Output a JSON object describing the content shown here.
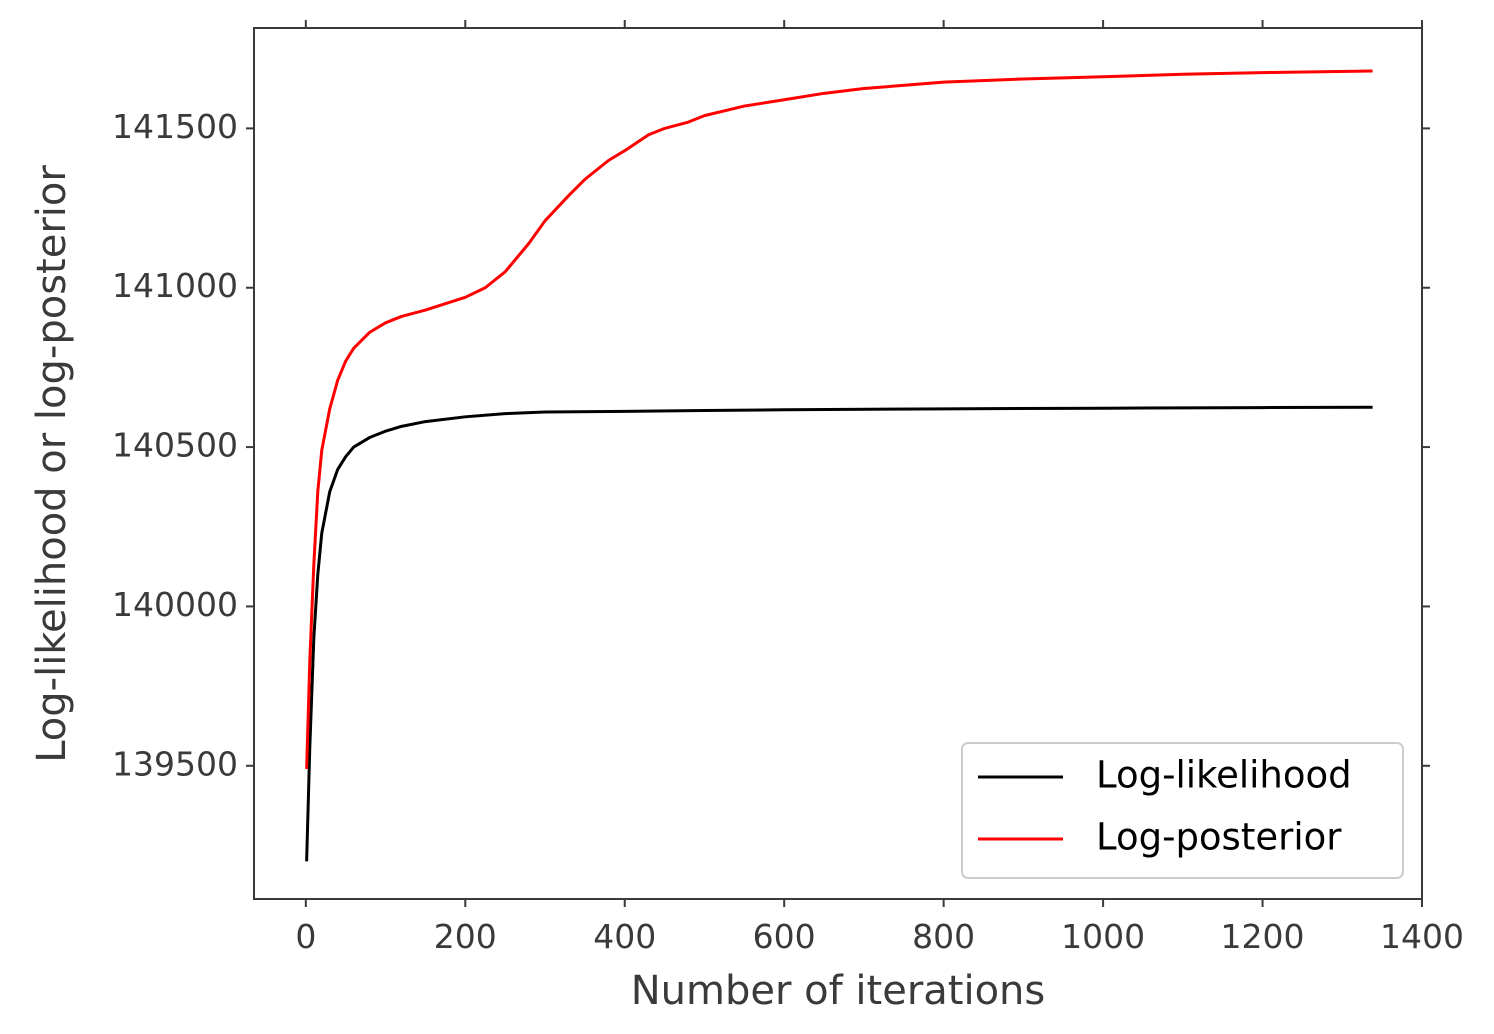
{
  "chart_data": {
    "type": "line",
    "title": "",
    "xlabel": "Number of iterations",
    "ylabel": "Log-likelihood or log-posterior",
    "xlim": [
      -65,
      1400
    ],
    "ylim": [
      139082,
      141815
    ],
    "xticks": [
      0,
      200,
      400,
      600,
      800,
      1000,
      1200,
      1400
    ],
    "yticks": [
      139500,
      140000,
      140500,
      141000,
      141500
    ],
    "xtick_labels": [
      "0",
      "200",
      "400",
      "600",
      "800",
      "1000",
      "1200",
      "1400"
    ],
    "ytick_labels": [
      "139500",
      "140000",
      "140500",
      "141000",
      "141500"
    ],
    "grid": false,
    "legend_position": "lower right",
    "series": [
      {
        "name": "Log-likelihood",
        "color": "#000000",
        "x": [
          1,
          5,
          10,
          15,
          20,
          30,
          40,
          50,
          60,
          80,
          100,
          120,
          150,
          200,
          250,
          300,
          400,
          500,
          600,
          800,
          1000,
          1200,
          1338
        ],
        "y": [
          139200,
          139560,
          139900,
          140100,
          140230,
          140360,
          140430,
          140470,
          140500,
          140530,
          140550,
          140565,
          140580,
          140595,
          140605,
          140610,
          140612,
          140615,
          140617,
          140620,
          140622,
          140624,
          140625
        ]
      },
      {
        "name": "Log-posterior",
        "color": "#ff0000",
        "x": [
          1,
          5,
          10,
          15,
          20,
          30,
          40,
          50,
          60,
          80,
          100,
          120,
          150,
          200,
          225,
          250,
          280,
          300,
          330,
          350,
          380,
          400,
          430,
          450,
          480,
          500,
          550,
          600,
          650,
          700,
          800,
          900,
          1000,
          1100,
          1200,
          1338
        ],
        "y": [
          139490,
          139830,
          140130,
          140360,
          140490,
          140620,
          140710,
          140770,
          140810,
          140860,
          140890,
          140910,
          140930,
          140970,
          141000,
          141050,
          141140,
          141210,
          141290,
          141340,
          141400,
          141430,
          141480,
          141500,
          141520,
          141540,
          141570,
          141590,
          141610,
          141625,
          141645,
          141655,
          141662,
          141670,
          141675,
          141680
        ]
      }
    ]
  }
}
